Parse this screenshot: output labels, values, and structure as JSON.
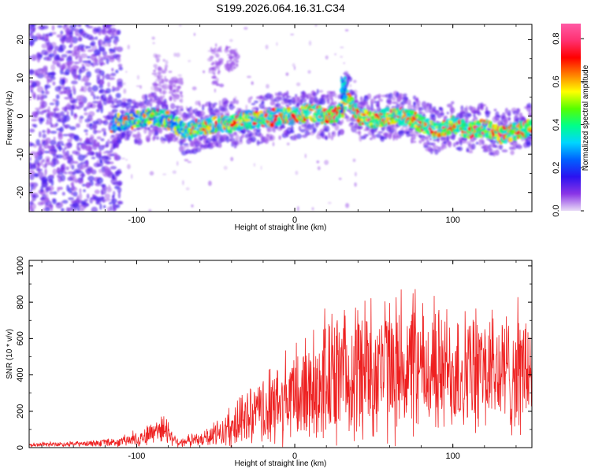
{
  "title": "S199.2026.064.16.31.C34",
  "chart_data": [
    {
      "type": "heatmap",
      "xlabel": "Height of straight line (km)",
      "ylabel": "Frequency (Hz)",
      "xlim": [
        -168,
        150
      ],
      "ylim": [
        -25,
        24
      ],
      "xticks": [
        -100,
        0,
        100
      ],
      "xtick_labels": [
        "-100",
        "0",
        "100"
      ],
      "yticks": [
        -20,
        -10,
        0,
        10,
        20
      ],
      "ytick_labels": [
        "-20",
        "-10",
        "0",
        "10",
        "20"
      ],
      "colorbar": {
        "label": "Normalized spectral amplitude",
        "range": [
          0.0,
          0.87
        ],
        "ticks": [
          0.0,
          0.2,
          0.4,
          0.6,
          0.8
        ],
        "tick_labels": [
          "0.0",
          "0.2",
          "0.4",
          "0.6",
          "0.8"
        ],
        "colors": [
          "#e9dcf6",
          "#8a35e6",
          "#2b12f0",
          "#0060ff",
          "#00d6ff",
          "#00ff8a",
          "#55ff00",
          "#ffff00",
          "#ff7f00",
          "#ff0000",
          "#ff3070",
          "#ff5aa5"
        ]
      },
      "ridge": {
        "x": [
          -115,
          -100,
          -90,
          -80,
          -70,
          -60,
          -50,
          -40,
          -30,
          -20,
          -10,
          0,
          10,
          20,
          30,
          32,
          40,
          50,
          60,
          70,
          80,
          90,
          100,
          110,
          120,
          130,
          140,
          148
        ],
        "y": [
          -2,
          -1,
          0,
          -1,
          -4,
          -3,
          -2,
          -2,
          -1,
          -1,
          0,
          0,
          1,
          0,
          1,
          6,
          0,
          -1,
          0,
          0,
          -2,
          -4,
          -2,
          -4,
          -3,
          -5,
          -4,
          -3
        ]
      }
    },
    {
      "type": "line",
      "xlabel": "Height of straight line (km)",
      "ylabel": "SNR (10 * v/v)",
      "xlim": [
        -168,
        150
      ],
      "ylim": [
        0,
        1030
      ],
      "xticks": [
        -100,
        0,
        100
      ],
      "xtick_labels": [
        "-100",
        "0",
        "100"
      ],
      "yticks": [
        0,
        200,
        400,
        600,
        800,
        1000
      ],
      "ytick_labels": [
        "0",
        "200",
        "400",
        "600",
        "800",
        "1000"
      ],
      "color": "#ee2020",
      "envelope": {
        "x": [
          -168,
          -130,
          -110,
          -95,
          -85,
          -80,
          -75,
          -60,
          -50,
          -40,
          -30,
          -20,
          -10,
          0,
          10,
          20,
          30,
          40,
          50,
          60,
          80,
          100,
          120,
          140,
          150
        ],
        "mean": [
          15,
          22,
          30,
          60,
          110,
          90,
          30,
          40,
          70,
          110,
          160,
          190,
          230,
          270,
          330,
          370,
          400,
          430,
          440,
          440,
          420,
          420,
          420,
          410,
          430
        ],
        "amplitude": [
          10,
          15,
          25,
          50,
          80,
          70,
          25,
          40,
          70,
          100,
          150,
          180,
          220,
          260,
          320,
          350,
          350,
          380,
          400,
          380,
          350,
          340,
          330,
          330,
          320
        ]
      }
    }
  ]
}
